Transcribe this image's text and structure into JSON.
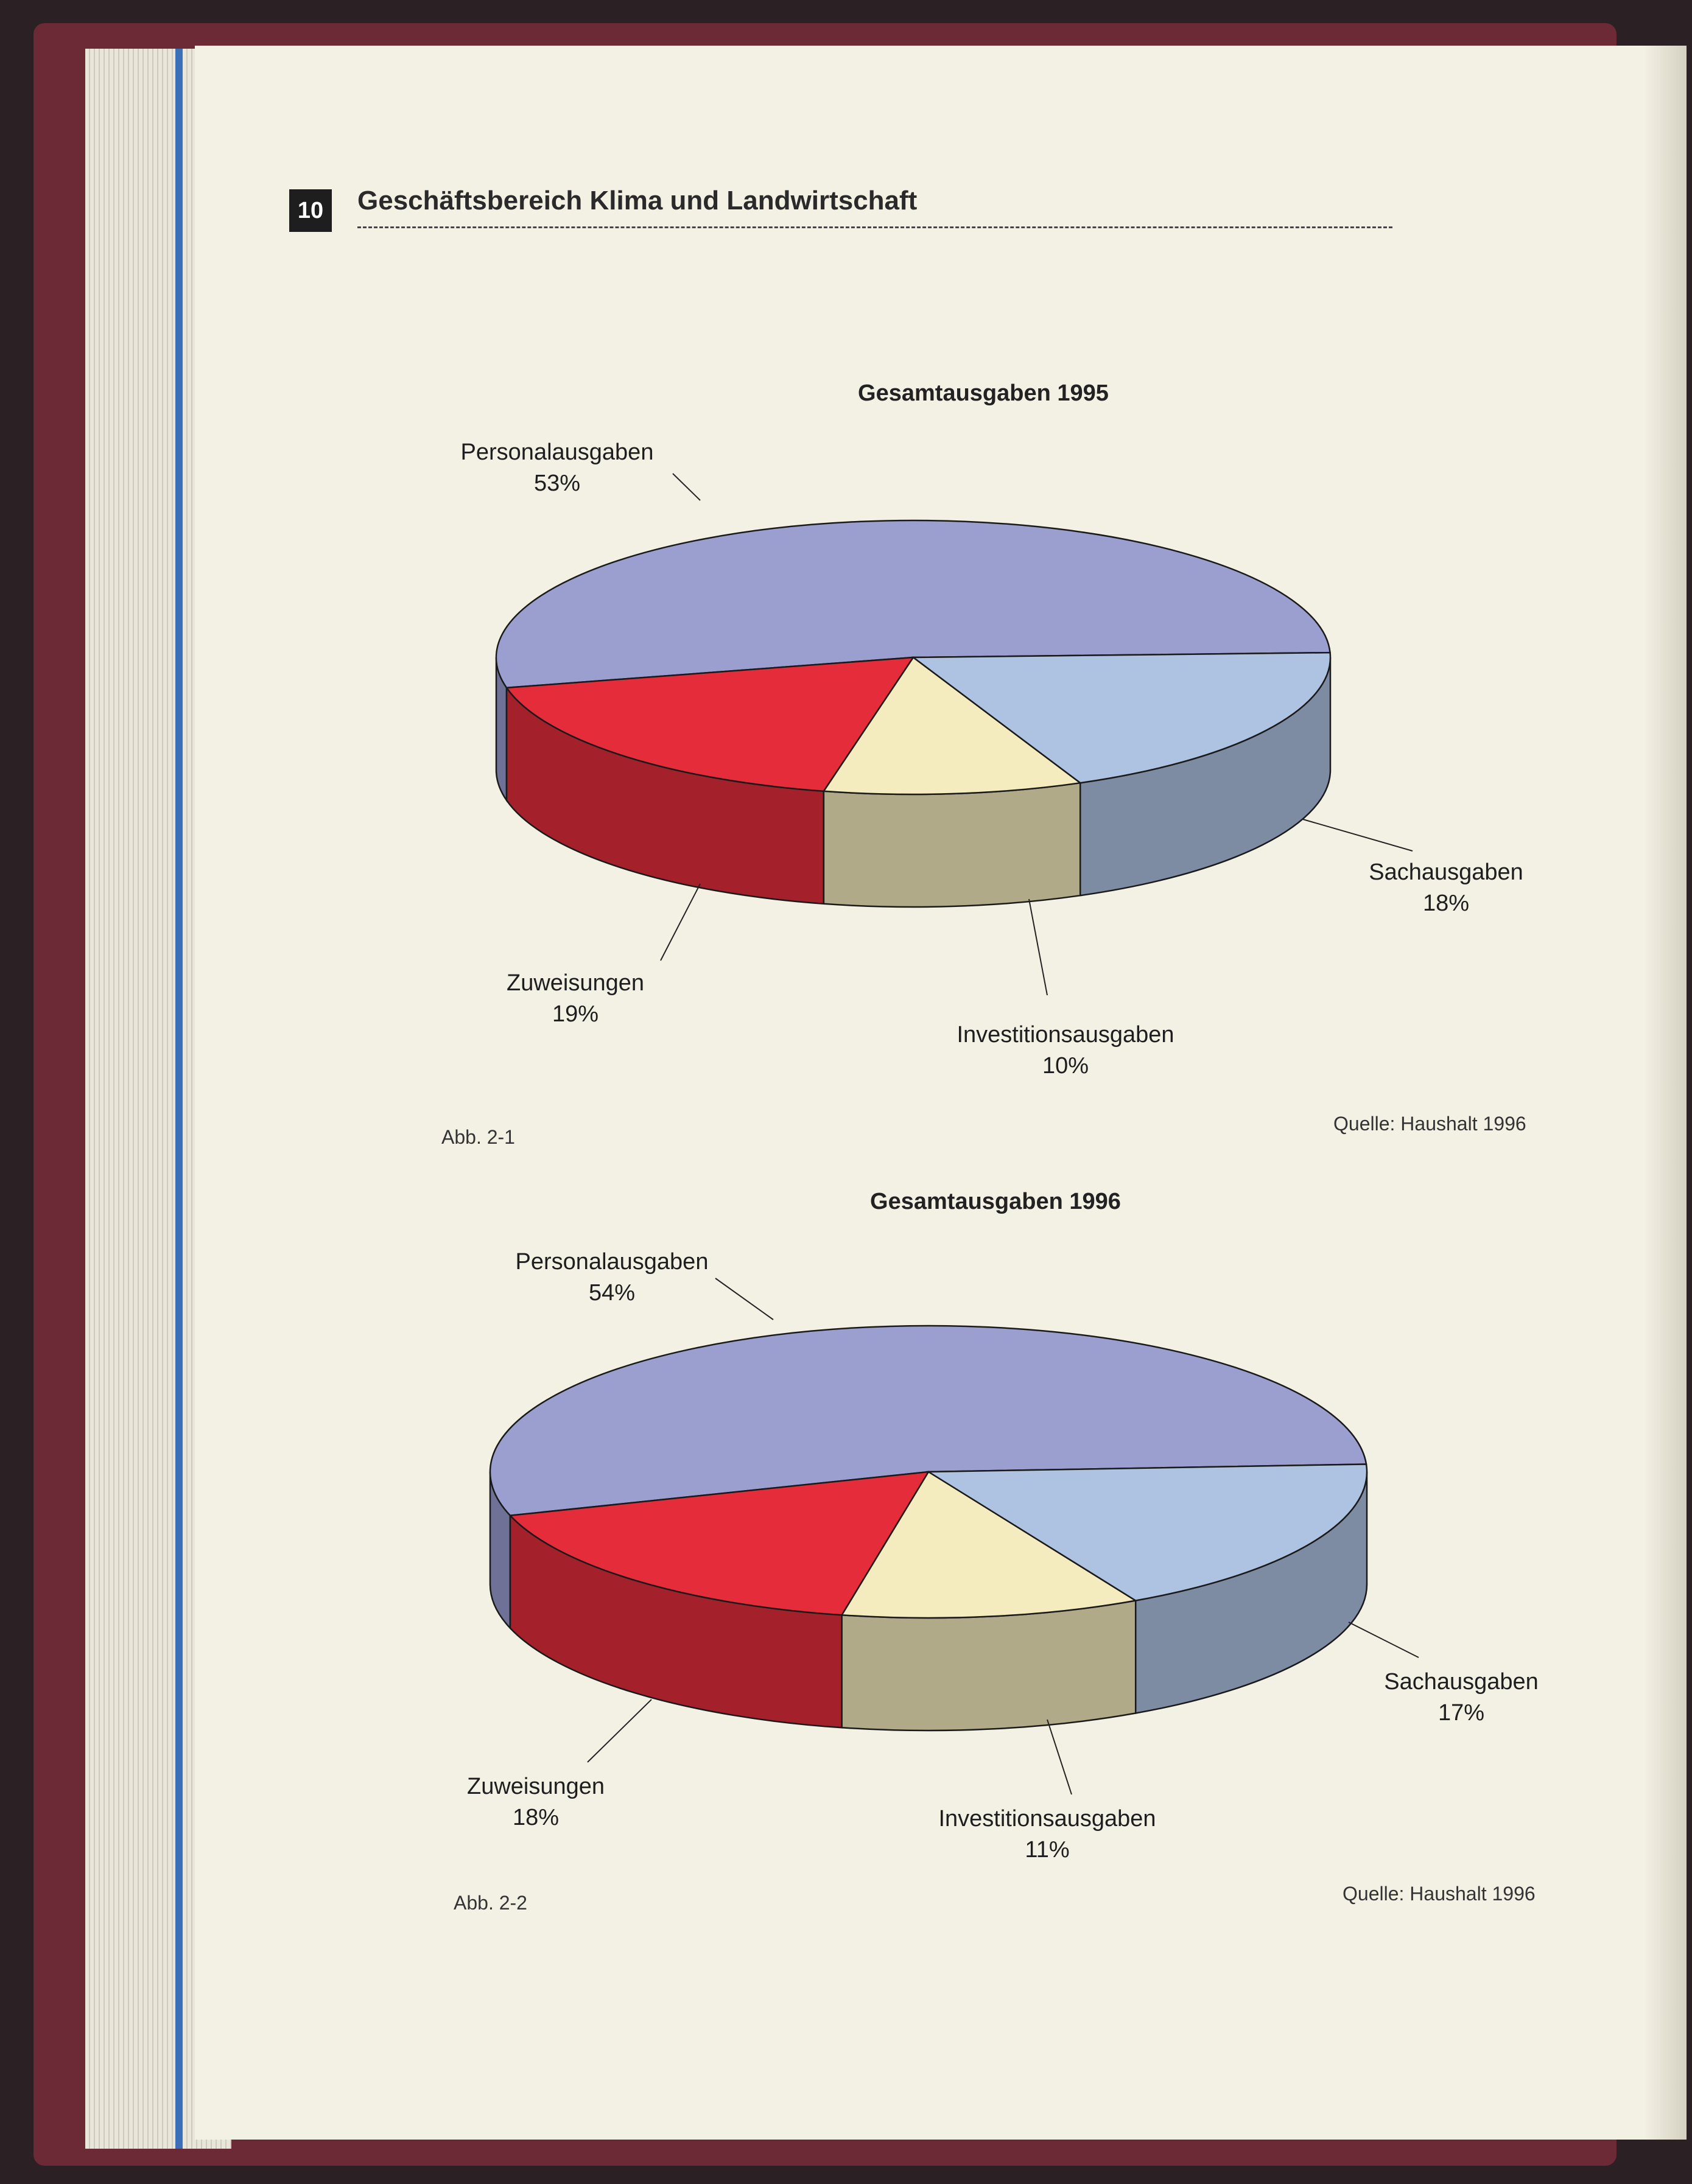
{
  "page": {
    "number": "10",
    "section_title": "Geschäftsbereich Klima und Landwirtschaft"
  },
  "figures": [
    {
      "id": "abb-2-1",
      "caption": "Abb. 2-1",
      "source": "Quelle: Haushalt 1996"
    },
    {
      "id": "abb-2-2",
      "caption": "Abb. 2-2",
      "source": "Quelle: Haushalt 1996"
    }
  ],
  "chart_data": [
    {
      "type": "pie",
      "style": "3d",
      "title": "Gesamtausgaben 1995",
      "slices": [
        {
          "label": "Personalausgaben",
          "value": 53,
          "value_label": "53%",
          "color": "#9a9fd0"
        },
        {
          "label": "Sachausgaben",
          "value": 18,
          "value_label": "18%",
          "color": "#e42c3a"
        },
        {
          "label": "Investitionsausgaben",
          "value": 10,
          "value_label": "10%",
          "color": "#f4ecbe"
        },
        {
          "label": "Zuweisungen",
          "value": 19,
          "value_label": "19%",
          "color": "#aec3e2"
        }
      ]
    },
    {
      "type": "pie",
      "style": "3d",
      "title": "Gesamtausgaben 1996",
      "slices": [
        {
          "label": "Personalausgaben",
          "value": 54,
          "value_label": "54%",
          "color": "#9a9fd0"
        },
        {
          "label": "Sachausgaben",
          "value": 17,
          "value_label": "17%",
          "color": "#e42c3a"
        },
        {
          "label": "Investitionsausgaben",
          "value": 11,
          "value_label": "11%",
          "color": "#f4ecbe"
        },
        {
          "label": "Zuweisungen",
          "value": 18,
          "value_label": "18%",
          "color": "#aec3e2"
        }
      ]
    }
  ]
}
